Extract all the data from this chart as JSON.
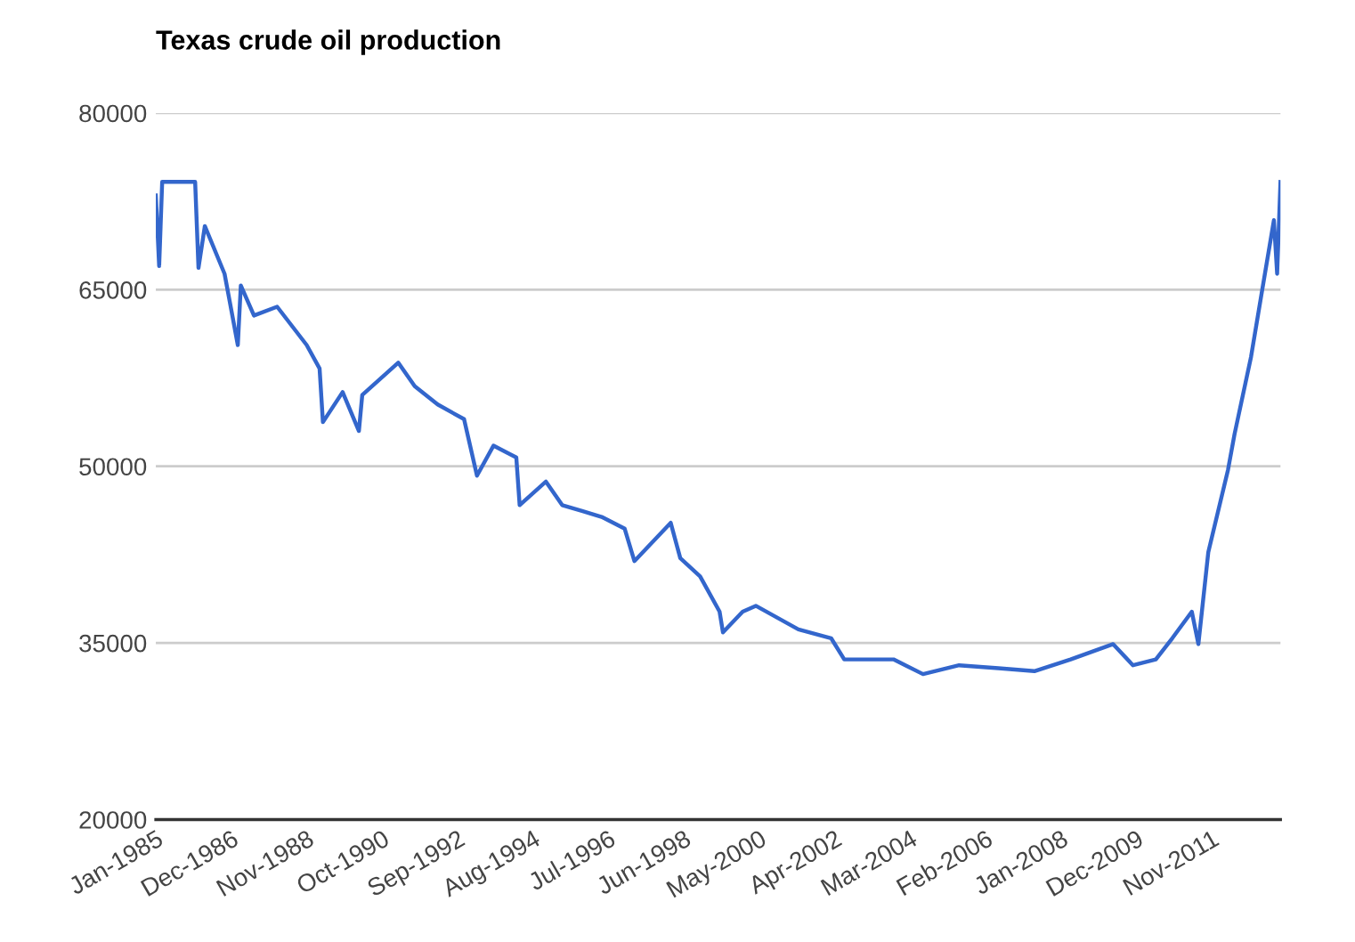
{
  "chart_data": {
    "type": "line",
    "title": "Texas crude oil production",
    "x": [
      "1985-01",
      "1985-02",
      "1985-03",
      "1985-04",
      "1986-01",
      "1986-02",
      "1986-04",
      "1986-10",
      "1987-02",
      "1987-03",
      "1987-07",
      "1988-02",
      "1988-11",
      "1989-03",
      "1989-04",
      "1989-10",
      "1990-03",
      "1990-04",
      "1991-03",
      "1991-08",
      "1992-03",
      "1992-11",
      "1993-03",
      "1993-08",
      "1994-03",
      "1994-04",
      "1994-12",
      "1995-05",
      "1995-11",
      "1996-05",
      "1996-12",
      "1997-03",
      "1998-02",
      "1998-05",
      "1998-11",
      "1999-05",
      "1999-06",
      "1999-12",
      "2000-04",
      "2001-05",
      "2002-03",
      "2002-07",
      "2003-10",
      "2004-07",
      "2005-06",
      "2006-06",
      "2007-05",
      "2008-04",
      "2009-05",
      "2009-11",
      "2010-06",
      "2010-11",
      "2011-05",
      "2011-07",
      "2011-10",
      "2012-04",
      "2012-06",
      "2012-11",
      "2013-02",
      "2013-06",
      "2013-07",
      "2013-08"
    ],
    "series": [
      {
        "color": "#3366cc",
        "values": [
          73000,
          67000,
          74150,
          74150,
          74150,
          66850,
          70400,
          66350,
          60300,
          65350,
          62800,
          63550,
          60300,
          58300,
          53750,
          56300,
          53000,
          56050,
          58800,
          56800,
          55250,
          54000,
          49200,
          51750,
          50750,
          46700,
          48700,
          46700,
          46200,
          45700,
          44700,
          41950,
          45200,
          42200,
          40650,
          37650,
          35900,
          37650,
          38150,
          36150,
          35400,
          33600,
          33600,
          32350,
          33100,
          32850,
          32600,
          33600,
          34900,
          33100,
          33600,
          35400,
          37650,
          34900,
          42700,
          49700,
          52750,
          59300,
          64350,
          70900,
          66350,
          74150
        ]
      }
    ],
    "xlim": [
      "1985-01",
      "2013-08"
    ],
    "xticks": [
      {
        "value": "1985-01",
        "label": "Jan-1985"
      },
      {
        "value": "1986-12",
        "label": "Dec-1986"
      },
      {
        "value": "1988-11",
        "label": "Nov-1988"
      },
      {
        "value": "1990-10",
        "label": "Oct-1990"
      },
      {
        "value": "1992-09",
        "label": "Sep-1992"
      },
      {
        "value": "1994-08",
        "label": "Aug-1994"
      },
      {
        "value": "1996-07",
        "label": "Jul-1996"
      },
      {
        "value": "1998-06",
        "label": "Jun-1998"
      },
      {
        "value": "2000-05",
        "label": "May-2000"
      },
      {
        "value": "2002-04",
        "label": "Apr-2002"
      },
      {
        "value": "2004-03",
        "label": "Mar-2004"
      },
      {
        "value": "2006-02",
        "label": "Feb-2006"
      },
      {
        "value": "2008-01",
        "label": "Jan-2008"
      },
      {
        "value": "2009-12",
        "label": "Dec-2009"
      },
      {
        "value": "2011-11",
        "label": "Nov-2011"
      }
    ],
    "ylim": [
      20000,
      80000
    ],
    "yticks": [
      20000,
      35000,
      50000,
      65000,
      80000
    ],
    "grid": "y"
  }
}
